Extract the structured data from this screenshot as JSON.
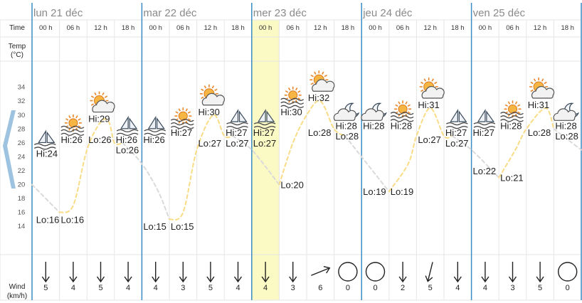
{
  "labels": {
    "time": "Time",
    "temp_line1": "Temp",
    "temp_line2": "(°C)",
    "wind_line1": "Wind",
    "wind_line2": "(km/h)"
  },
  "days": [
    {
      "name": "lun 21 déc"
    },
    {
      "name": "mar 22 déc"
    },
    {
      "name": "mer 23 déc"
    },
    {
      "name": "jeu 24 déc"
    },
    {
      "name": "ven 25 déc"
    }
  ],
  "hours": [
    "00 h",
    "06 h",
    "12 h",
    "18 h"
  ],
  "highlight_slot": 8,
  "colors": {
    "day_separator": "#3a8cc4",
    "grid": "#e6e6e6",
    "highlight": "#fbf9c4",
    "curve": "#f9dc86",
    "night_link": "#dadada",
    "nav_arrow": "#9ec3e0"
  },
  "nav": {
    "icon": "chevron-left-icon"
  },
  "slots": [
    {
      "icon": "moon-sail-icon",
      "label": "Hi:24",
      "temp": 24,
      "wind_dir": "S",
      "wind": "5"
    },
    {
      "icon": "sun-fog-icon",
      "label": "Hi:26",
      "temp": 26,
      "wind_dir": "S",
      "wind": "4"
    },
    {
      "icon": "sun-cloud-icon",
      "label": "Hi:29",
      "temp": 29,
      "wind_dir": "S",
      "wind": "5"
    },
    {
      "icon": "moon-sail-icon",
      "label": "Hi:26",
      "temp": 26,
      "wind_dir": "S",
      "wind": "4"
    },
    {
      "icon": "moon-sail-icon",
      "label": "Hi:26",
      "temp": 26,
      "wind_dir": "S",
      "wind": "4"
    },
    {
      "icon": "sun-fog-icon",
      "label": "Hi:27",
      "temp": 27,
      "wind_dir": "S",
      "wind": "3"
    },
    {
      "icon": "sun-cloud-icon",
      "label": "Hi:30",
      "temp": 30,
      "wind_dir": "S",
      "wind": "5"
    },
    {
      "icon": "moon-sail-icon",
      "label": "Hi:27",
      "temp": 27,
      "wind_dir": "S",
      "wind": "4"
    },
    {
      "icon": "moon-sail-icon",
      "label": "Hi:27",
      "temp": 27,
      "wind_dir": "S",
      "wind": "4"
    },
    {
      "icon": "sun-fog-icon",
      "label": "Hi:30",
      "temp": 30,
      "wind_dir": "S",
      "wind": "3"
    },
    {
      "icon": "sun-cloud-icon",
      "label": "Hi:32",
      "temp": 32,
      "wind_dir": "ENE",
      "wind": "6"
    },
    {
      "icon": "moon-cloud-icon",
      "label": "Hi:28",
      "temp": 28,
      "wind_dir": "calm",
      "wind": "0"
    },
    {
      "icon": "moon-cloud-icon",
      "label": "Hi:28",
      "temp": 28,
      "wind_dir": "calm",
      "wind": "0"
    },
    {
      "icon": "sun-fog-icon",
      "label": "Hi:28",
      "temp": 28,
      "wind_dir": "S",
      "wind": "2"
    },
    {
      "icon": "sun-cloud-icon",
      "label": "Hi:31",
      "temp": 31,
      "wind_dir": "SSW",
      "wind": "5"
    },
    {
      "icon": "moon-sail-icon",
      "label": "Hi:27",
      "temp": 27,
      "wind_dir": "S",
      "wind": "4"
    },
    {
      "icon": "moon-sail-icon",
      "label": "Hi:27",
      "temp": 27,
      "wind_dir": "S",
      "wind": "4"
    },
    {
      "icon": "sun-fog-icon",
      "label": "Hi:28",
      "temp": 28,
      "wind_dir": "S",
      "wind": "3"
    },
    {
      "icon": "sun-cloud-icon",
      "label": "Hi:31",
      "temp": 31,
      "wind_dir": "S",
      "wind": "5"
    },
    {
      "icon": "moon-cloud-icon",
      "label": "Hi:28",
      "temp": 28,
      "wind_dir": "calm",
      "wind": "0"
    }
  ],
  "chart_data": {
    "type": "line",
    "ylim": [
      13,
      35.5
    ],
    "yticks": [
      14,
      16,
      18,
      20,
      22,
      24,
      26,
      28,
      30,
      32,
      34
    ],
    "curve_points": [
      {
        "slot": 0,
        "t": 20
      },
      {
        "slot": 1,
        "t": 16
      },
      {
        "slot": 1.5,
        "t": 17
      },
      {
        "slot": 2,
        "t": 25
      },
      {
        "slot": 2.5,
        "t": 29
      },
      {
        "slot": 2.8,
        "t": 29
      },
      {
        "slot": 3,
        "t": 26
      },
      {
        "slot": 3.3,
        "t": 26
      },
      {
        "slot": 4,
        "t": 23
      },
      {
        "slot": 4.6,
        "t": 19
      },
      {
        "slot": 5,
        "t": 15
      },
      {
        "slot": 5.5,
        "t": 16
      },
      {
        "slot": 6,
        "t": 25
      },
      {
        "slot": 6.6,
        "t": 30
      },
      {
        "slot": 7,
        "t": 27
      },
      {
        "slot": 7.3,
        "t": 27
      },
      {
        "slot": 8,
        "t": 25
      },
      {
        "slot": 9,
        "t": 20
      },
      {
        "slot": 9.5,
        "t": 26
      },
      {
        "slot": 10,
        "t": 30
      },
      {
        "slot": 10.5,
        "t": 32
      },
      {
        "slot": 11,
        "t": 28
      },
      {
        "slot": 11.4,
        "t": 27
      },
      {
        "slot": 12,
        "t": 24
      },
      {
        "slot": 13,
        "t": 19
      },
      {
        "slot": 13.7,
        "t": 23
      },
      {
        "slot": 14,
        "t": 27
      },
      {
        "slot": 14.5,
        "t": 31
      },
      {
        "slot": 15,
        "t": 27
      },
      {
        "slot": 15.3,
        "t": 27
      },
      {
        "slot": 16,
        "t": 25
      },
      {
        "slot": 17,
        "t": 21
      },
      {
        "slot": 17.6,
        "t": 25
      },
      {
        "slot": 18,
        "t": 28
      },
      {
        "slot": 18.7,
        "t": 31
      },
      {
        "slot": 19,
        "t": 28
      },
      {
        "slot": 20,
        "t": 25
      }
    ],
    "temp_labels": [
      {
        "text": "Hi:24",
        "slot": 0.15,
        "t": 24,
        "anchor": "start"
      },
      {
        "text": "Hi:26",
        "slot": 1.05,
        "t": 26,
        "anchor": "start"
      },
      {
        "text": "Hi:29",
        "slot": 2.05,
        "t": 29,
        "anchor": "start"
      },
      {
        "text": "Lo:26",
        "slot": 2.05,
        "t": 26,
        "anchor": "start"
      },
      {
        "text": "Hi:26",
        "slot": 3.05,
        "t": 26,
        "anchor": "start"
      },
      {
        "text": "Lo:26",
        "slot": 3.05,
        "t": 24.5,
        "anchor": "start"
      },
      {
        "text": "Lo:16",
        "slot": 0.15,
        "t": 14.5,
        "anchor": "start"
      },
      {
        "text": "Lo:16",
        "slot": 1.05,
        "t": 14.5,
        "anchor": "start"
      },
      {
        "text": "Hi:26",
        "slot": 4.05,
        "t": 26,
        "anchor": "start"
      },
      {
        "text": "Hi:27",
        "slot": 5.05,
        "t": 27,
        "anchor": "start"
      },
      {
        "text": "Hi:30",
        "slot": 6.05,
        "t": 30,
        "anchor": "start"
      },
      {
        "text": "Lo:27",
        "slot": 6.05,
        "t": 25.5,
        "anchor": "start"
      },
      {
        "text": "Hi:27",
        "slot": 7.05,
        "t": 27,
        "anchor": "start"
      },
      {
        "text": "Lo:27",
        "slot": 7.05,
        "t": 25.5,
        "anchor": "start"
      },
      {
        "text": "Lo:15",
        "slot": 4.05,
        "t": 13.5,
        "anchor": "start"
      },
      {
        "text": "Lo:15",
        "slot": 5.05,
        "t": 13.5,
        "anchor": "start"
      },
      {
        "text": "Hi:27",
        "slot": 8.05,
        "t": 27,
        "anchor": "start"
      },
      {
        "text": "Lo:27",
        "slot": 8.05,
        "t": 25.5,
        "anchor": "start"
      },
      {
        "text": "Hi:30",
        "slot": 9.05,
        "t": 30,
        "anchor": "start"
      },
      {
        "text": "Lo:20",
        "slot": 9.05,
        "t": 19.5,
        "anchor": "start"
      },
      {
        "text": "Hi:32",
        "slot": 10.05,
        "t": 32,
        "anchor": "start"
      },
      {
        "text": "Lo:28",
        "slot": 10.05,
        "t": 27,
        "anchor": "start"
      },
      {
        "text": "Hi:28",
        "slot": 11.05,
        "t": 28,
        "anchor": "start"
      },
      {
        "text": "Lo:28",
        "slot": 11.05,
        "t": 26.5,
        "anchor": "start"
      },
      {
        "text": "Hi:28",
        "slot": 12.05,
        "t": 28,
        "anchor": "start"
      },
      {
        "text": "Hi:28",
        "slot": 13.05,
        "t": 28,
        "anchor": "start"
      },
      {
        "text": "Lo:19",
        "slot": 12.05,
        "t": 18.5,
        "anchor": "start"
      },
      {
        "text": "Lo:19",
        "slot": 13.05,
        "t": 18.5,
        "anchor": "start"
      },
      {
        "text": "Hi:31",
        "slot": 14.05,
        "t": 31,
        "anchor": "start"
      },
      {
        "text": "Lo:27",
        "slot": 14.05,
        "t": 26,
        "anchor": "start"
      },
      {
        "text": "Hi:27",
        "slot": 15.05,
        "t": 27,
        "anchor": "start"
      },
      {
        "text": "Lo:27",
        "slot": 15.05,
        "t": 25.5,
        "anchor": "start"
      },
      {
        "text": "Hi:27",
        "slot": 16.05,
        "t": 27,
        "anchor": "start"
      },
      {
        "text": "Lo:22",
        "slot": 16.05,
        "t": 21.5,
        "anchor": "start"
      },
      {
        "text": "Hi:28",
        "slot": 17.05,
        "t": 28,
        "anchor": "start"
      },
      {
        "text": "Lo:21",
        "slot": 17.05,
        "t": 20.5,
        "anchor": "start"
      },
      {
        "text": "Hi:31",
        "slot": 18.05,
        "t": 31,
        "anchor": "start"
      },
      {
        "text": "Lo:28",
        "slot": 18.05,
        "t": 27,
        "anchor": "start"
      },
      {
        "text": "Hi:28",
        "slot": 19.05,
        "t": 28,
        "anchor": "start"
      },
      {
        "text": "Lo:28",
        "slot": 19.05,
        "t": 26.5,
        "anchor": "start"
      }
    ]
  }
}
